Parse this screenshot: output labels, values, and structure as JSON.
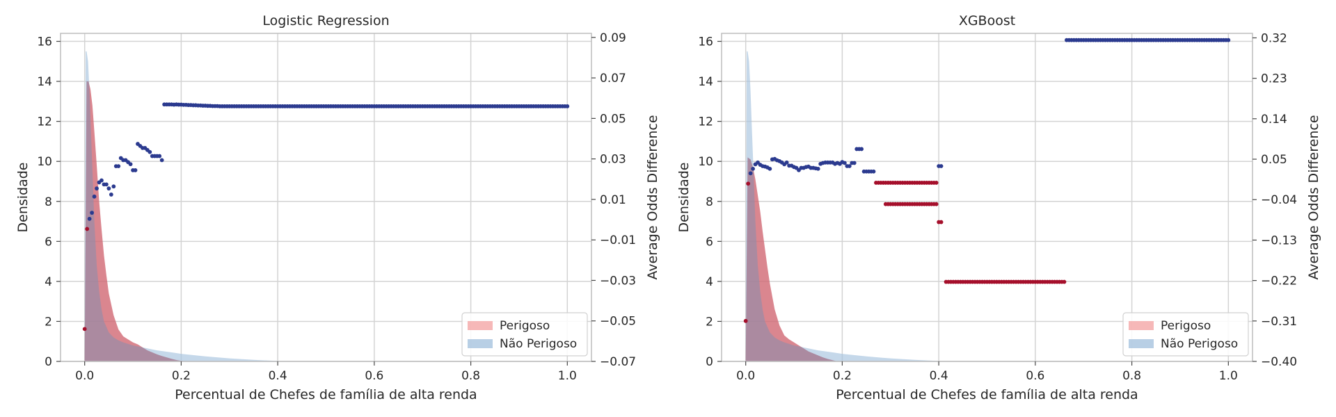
{
  "colors": {
    "perigoso_fill": "#f4a6a6",
    "nao_perigoso_fill": "#a6c3df",
    "dot_positive": "#2b3a8f",
    "dot_negative": "#a50f2b",
    "grid": "#d3d3d3",
    "axes": "#bdbdbd"
  },
  "chart_data": [
    {
      "type": "area",
      "title": "Logistic Regression",
      "xlabel": "Percentual de Chefes de família de alta renda",
      "ylabel": "Densidade",
      "y2label": "Average Odds Difference",
      "xlim": [
        -0.05,
        1.05
      ],
      "ylim": [
        0,
        16.4
      ],
      "y2lim": [
        -0.07,
        0.092
      ],
      "xticks": [
        "0.0",
        "0.2",
        "0.4",
        "0.6",
        "0.8",
        "1.0"
      ],
      "xtick_values": [
        0,
        0.2,
        0.4,
        0.6,
        0.8,
        1.0
      ],
      "yticks": [
        "0",
        "2",
        "4",
        "6",
        "8",
        "10",
        "12",
        "14",
        "16"
      ],
      "ytick_values": [
        0,
        2,
        4,
        6,
        8,
        10,
        12,
        14,
        16
      ],
      "y2ticks": [
        "−0.07",
        "−0.05",
        "−0.03",
        "−0.01",
        "0.01",
        "0.03",
        "0.05",
        "0.07",
        "0.09"
      ],
      "y2tick_values": [
        -0.07,
        -0.05,
        -0.03,
        -0.01,
        0.01,
        0.03,
        0.05,
        0.07,
        0.09
      ],
      "grid": true,
      "legend_position": "lower-right",
      "series": [
        {
          "name": "Perigoso",
          "kind": "density",
          "color": "#f4a6a6",
          "x": [
            0.0,
            0.004,
            0.008,
            0.012,
            0.016,
            0.02,
            0.025,
            0.03,
            0.035,
            0.04,
            0.045,
            0.05,
            0.06,
            0.07,
            0.08,
            0.09,
            0.1,
            0.11,
            0.12,
            0.13,
            0.14,
            0.15,
            0.16,
            0.17,
            0.18,
            0.19,
            0.2,
            0.21
          ],
          "y": [
            0.0,
            14.0,
            14.0,
            13.6,
            12.8,
            11.5,
            9.8,
            8.0,
            6.6,
            5.3,
            4.3,
            3.4,
            2.3,
            1.6,
            1.25,
            1.1,
            0.95,
            0.85,
            0.7,
            0.55,
            0.45,
            0.35,
            0.27,
            0.2,
            0.13,
            0.07,
            0.03,
            0.0
          ]
        },
        {
          "name": "Não Perigoso",
          "kind": "density",
          "color": "#a6c3df",
          "x": [
            0.0,
            0.002,
            0.004,
            0.007,
            0.01,
            0.013,
            0.017,
            0.02,
            0.025,
            0.03,
            0.035,
            0.04,
            0.05,
            0.06,
            0.07,
            0.08,
            0.1,
            0.12,
            0.15,
            0.18,
            0.2,
            0.25,
            0.3,
            0.35,
            0.4,
            0.42
          ],
          "y": [
            0.0,
            15.5,
            15.5,
            15.0,
            13.5,
            11.5,
            9.0,
            7.0,
            4.8,
            3.5,
            2.6,
            2.0,
            1.45,
            1.2,
            1.05,
            0.95,
            0.8,
            0.7,
            0.55,
            0.45,
            0.38,
            0.25,
            0.15,
            0.08,
            0.02,
            0.0
          ]
        },
        {
          "name": "Average Odds Difference",
          "kind": "scatter",
          "axis": "right",
          "x": [
            0.0,
            0.005,
            0.01,
            0.015,
            0.02,
            0.025,
            0.03,
            0.035,
            0.04,
            0.045,
            0.05,
            0.055,
            0.06,
            0.065,
            0.07,
            0.075,
            0.08,
            0.085,
            0.09,
            0.095,
            0.1,
            0.105,
            0.11,
            0.115,
            0.12,
            0.125,
            0.13,
            0.135,
            0.14,
            0.145,
            0.15,
            0.155,
            0.16,
            0.165,
            0.17,
            0.175,
            0.18,
            0.185,
            0.19,
            0.195,
            0.2,
            0.205,
            0.21,
            0.215,
            0.22,
            0.225,
            0.23,
            0.235,
            0.24,
            0.245,
            0.25,
            0.255,
            0.26,
            0.265,
            0.27,
            0.275,
            0.28,
            0.285,
            0.29,
            0.295
          ],
          "y": [
            -0.054,
            -0.0046,
            0.0004,
            0.0034,
            0.0114,
            0.0154,
            0.0184,
            0.0194,
            0.0174,
            0.0174,
            0.0154,
            0.0124,
            0.0164,
            0.0264,
            0.0264,
            0.0304,
            0.0294,
            0.0294,
            0.0284,
            0.0274,
            0.0244,
            0.0244,
            0.0374,
            0.0364,
            0.0354,
            0.0354,
            0.0344,
            0.0334,
            0.0314,
            0.0314,
            0.0314,
            0.0314,
            0.0294,
            0.0569,
            0.0569,
            0.0569,
            0.0569,
            0.0568,
            0.0569,
            0.0568,
            0.0568,
            0.0567,
            0.0567,
            0.0566,
            0.0566,
            0.0565,
            0.0565,
            0.0564,
            0.0564,
            0.0563,
            0.0563,
            0.0562,
            0.0562,
            0.0561,
            0.0561,
            0.0561,
            0.056,
            0.056,
            0.056,
            0.056
          ],
          "tail": {
            "x_start": 0.3,
            "x_end": 1.0,
            "step": 0.005,
            "y": 0.056
          }
        }
      ]
    },
    {
      "type": "area",
      "title": "XGBoost",
      "xlabel": "Percentual de Chefes de família de alta renda",
      "ylabel": "Densidade",
      "y2label": "Average Odds Difference",
      "xlim": [
        -0.05,
        1.05
      ],
      "ylim": [
        0,
        16.4
      ],
      "y2lim": [
        -0.4,
        0.33
      ],
      "xticks": [
        "0.0",
        "0.2",
        "0.4",
        "0.6",
        "0.8",
        "1.0"
      ],
      "xtick_values": [
        0,
        0.2,
        0.4,
        0.6,
        0.8,
        1.0
      ],
      "yticks": [
        "0",
        "2",
        "4",
        "6",
        "8",
        "10",
        "12",
        "14",
        "16"
      ],
      "ytick_values": [
        0,
        2,
        4,
        6,
        8,
        10,
        12,
        14,
        16
      ],
      "y2ticks": [
        "−0.40",
        "−0.31",
        "−0.22",
        "−0.13",
        "−0.04",
        "0.05",
        "0.14",
        "0.23",
        "0.32"
      ],
      "y2tick_values": [
        -0.4,
        -0.31,
        -0.22,
        -0.13,
        -0.04,
        0.05,
        0.14,
        0.23,
        0.32
      ],
      "grid": true,
      "legend_position": "lower-right",
      "series": [
        {
          "name": "Perigoso",
          "kind": "density",
          "color": "#f4a6a6",
          "x": [
            0.0,
            0.004,
            0.01,
            0.015,
            0.02,
            0.025,
            0.03,
            0.035,
            0.04,
            0.045,
            0.05,
            0.06,
            0.07,
            0.08,
            0.09,
            0.1,
            0.11,
            0.12,
            0.13,
            0.14,
            0.15,
            0.16,
            0.17,
            0.18,
            0.19
          ],
          "y": [
            0.0,
            10.2,
            10.1,
            9.7,
            9.1,
            8.3,
            7.5,
            6.5,
            5.6,
            4.7,
            3.9,
            2.6,
            1.8,
            1.3,
            1.1,
            0.95,
            0.8,
            0.65,
            0.5,
            0.4,
            0.3,
            0.2,
            0.12,
            0.06,
            0.0
          ]
        },
        {
          "name": "Não Perigoso",
          "kind": "density",
          "color": "#a6c3df",
          "x": [
            0.0,
            0.002,
            0.004,
            0.007,
            0.01,
            0.013,
            0.017,
            0.02,
            0.025,
            0.03,
            0.035,
            0.04,
            0.05,
            0.06,
            0.07,
            0.08,
            0.1,
            0.12,
            0.15,
            0.18,
            0.2,
            0.25,
            0.3,
            0.35,
            0.4,
            0.42
          ],
          "y": [
            0.0,
            15.5,
            15.5,
            15.0,
            13.5,
            11.5,
            9.0,
            7.0,
            4.8,
            3.5,
            2.6,
            2.0,
            1.45,
            1.2,
            1.05,
            0.95,
            0.8,
            0.7,
            0.55,
            0.45,
            0.38,
            0.25,
            0.15,
            0.08,
            0.02,
            0.0
          ]
        },
        {
          "name": "Average Odds Difference",
          "kind": "scatter",
          "axis": "right",
          "x": [
            0.0,
            0.005,
            0.01,
            0.015,
            0.02,
            0.025,
            0.03,
            0.035,
            0.04,
            0.045,
            0.05,
            0.055,
            0.06,
            0.065,
            0.07,
            0.075,
            0.08,
            0.085,
            0.09,
            0.095,
            0.1,
            0.105,
            0.11,
            0.115,
            0.12,
            0.125,
            0.13,
            0.135,
            0.14,
            0.145,
            0.15,
            0.155,
            0.16,
            0.165,
            0.17,
            0.175,
            0.18,
            0.185,
            0.19,
            0.195,
            0.2,
            0.205,
            0.21,
            0.215,
            0.22,
            0.225,
            0.23,
            0.235,
            0.24,
            0.245,
            0.25,
            0.255,
            0.26,
            0.265,
            0.27,
            0.275,
            0.28,
            0.285,
            0.29,
            0.295,
            0.3,
            0.305,
            0.31,
            0.315,
            0.32,
            0.325,
            0.33,
            0.335,
            0.34,
            0.345,
            0.35,
            0.355,
            0.36,
            0.365,
            0.37,
            0.375,
            0.38,
            0.385,
            0.39,
            0.395,
            0.4,
            0.405
          ],
          "y": [
            -0.31,
            -0.0044,
            0.0186,
            0.0286,
            0.0386,
            0.0426,
            0.0376,
            0.0346,
            0.0336,
            0.0316,
            0.0286,
            0.0496,
            0.0506,
            0.0476,
            0.0456,
            0.0426,
            0.0386,
            0.0426,
            0.0356,
            0.0356,
            0.0326,
            0.0306,
            0.0256,
            0.0306,
            0.0306,
            0.0326,
            0.0336,
            0.0306,
            0.0306,
            0.0296,
            0.0286,
            0.0396,
            0.0416,
            0.0426,
            0.0426,
            0.0426,
            0.0426,
            0.0396,
            0.0416,
            0.0396,
            0.0436,
            0.0416,
            0.0346,
            0.0346,
            0.0416,
            0.0416,
            0.0726,
            0.0726,
            0.0726,
            0.0226,
            0.0226,
            0.0226,
            0.0226,
            0.0226,
            -0.0024,
            -0.0024,
            -0.0024,
            -0.0024,
            -0.0024,
            -0.0024,
            -0.0024,
            -0.0024,
            -0.0024,
            -0.0024,
            -0.0024,
            -0.0024,
            -0.0024,
            -0.0024,
            -0.0024,
            -0.0024,
            -0.0024,
            -0.0024,
            -0.0024,
            -0.0024,
            -0.0024,
            -0.0024,
            -0.0024,
            -0.0024,
            -0.0024,
            -0.0024,
            0.0346,
            0.0346
          ],
          "segments": [
            {
              "x_start": 0.29,
              "x_end": 0.395,
              "step": 0.005,
              "y": -0.05
            },
            {
              "x_start": 0.4,
              "x_end": 0.405,
              "step": 0.005,
              "y": -0.09
            },
            {
              "x_start": 0.415,
              "x_end": 0.66,
              "step": 0.005,
              "y": -0.223
            },
            {
              "x_start": 0.665,
              "x_end": 1.0,
              "step": 0.005,
              "y": 0.315
            }
          ]
        }
      ]
    }
  ]
}
